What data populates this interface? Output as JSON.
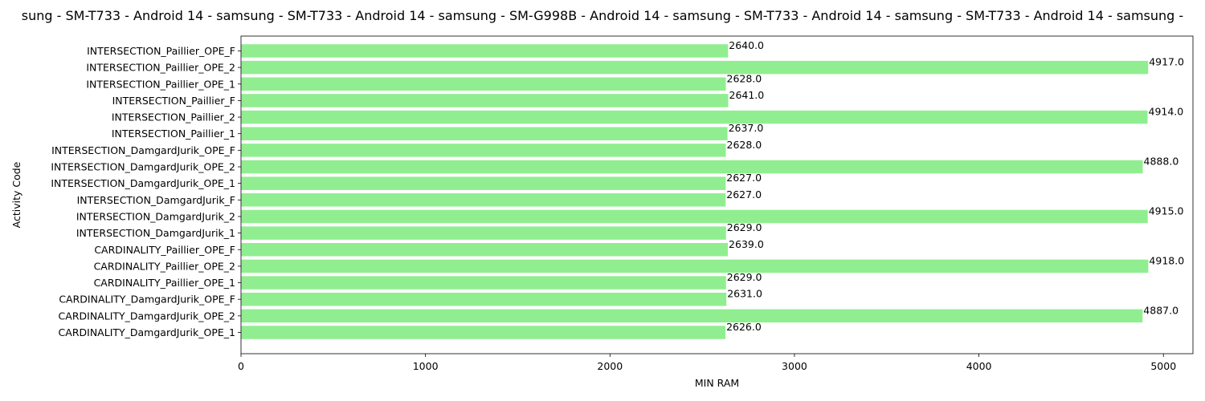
{
  "chart_data": {
    "type": "bar",
    "orientation": "horizontal",
    "title": "sung - SM-T733 - Android 14 - samsung - SM-T733 - Android 14 - samsung - SM-G998B - Android 14 - samsung - SM-T733 - Android 14 - samsung - SM-T733 - Android 14 - samsung -",
    "xlabel": "MIN RAM",
    "ylabel": "Activity Code",
    "xlim": [
      0,
      5160
    ],
    "xticks": [
      0,
      1000,
      2000,
      3000,
      4000,
      5000
    ],
    "bar_color": "#90ee90",
    "grid": false,
    "legend": false,
    "categories": [
      "CARDINALITY_DamgardJurik_OPE_1",
      "CARDINALITY_DamgardJurik_OPE_2",
      "CARDINALITY_DamgardJurik_OPE_F",
      "CARDINALITY_Paillier_OPE_1",
      "CARDINALITY_Paillier_OPE_2",
      "CARDINALITY_Paillier_OPE_F",
      "INTERSECTION_DamgardJurik_1",
      "INTERSECTION_DamgardJurik_2",
      "INTERSECTION_DamgardJurik_F",
      "INTERSECTION_DamgardJurik_OPE_1",
      "INTERSECTION_DamgardJurik_OPE_2",
      "INTERSECTION_DamgardJurik_OPE_F",
      "INTERSECTION_Paillier_1",
      "INTERSECTION_Paillier_2",
      "INTERSECTION_Paillier_F",
      "INTERSECTION_Paillier_OPE_1",
      "INTERSECTION_Paillier_OPE_2",
      "INTERSECTION_Paillier_OPE_F"
    ],
    "values": [
      2626.0,
      4887.0,
      2631.0,
      2629.0,
      4918.0,
      2639.0,
      2629.0,
      4915.0,
      2627.0,
      2627.0,
      4888.0,
      2628.0,
      2637.0,
      4914.0,
      2641.0,
      2628.0,
      4917.0,
      2640.0
    ],
    "value_labels": [
      "2626.0",
      "4887.0",
      "2631.0",
      "2629.0",
      "4918.0",
      "2639.0",
      "2629.0",
      "4915.0",
      "2627.0",
      "2627.0",
      "4888.0",
      "2628.0",
      "2637.0",
      "4914.0",
      "2641.0",
      "2628.0",
      "4917.0",
      "2640.0"
    ]
  }
}
